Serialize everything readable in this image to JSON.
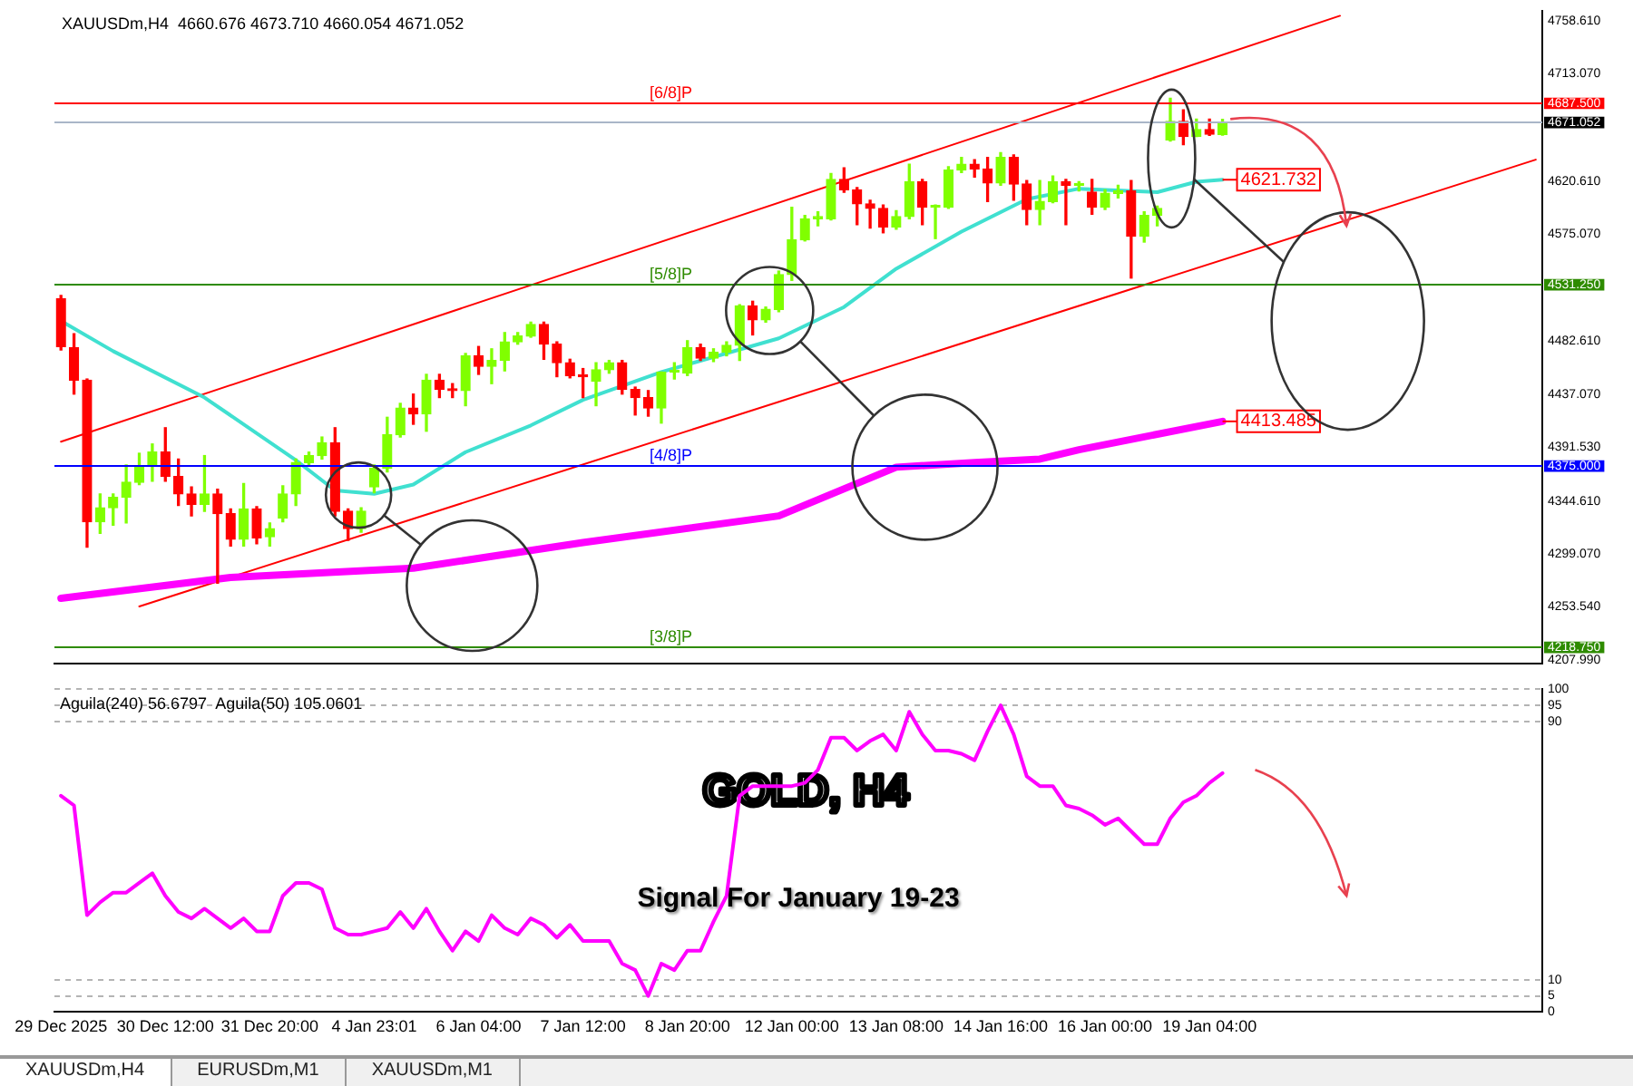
{
  "chart_data": [
    {
      "type": "candlestick",
      "title": "XAUUSDm,H4  4660.676 4673.710 4660.054 4671.052",
      "categories": [
        null,
        null,
        null,
        null,
        null,
        null,
        null,
        null,
        null,
        null,
        null,
        null,
        null,
        null,
        null,
        null,
        null,
        null,
        null,
        null,
        null,
        null,
        null,
        null,
        null,
        null,
        null,
        null,
        null,
        null,
        null,
        null,
        null,
        null,
        null,
        null,
        null,
        null,
        null,
        null,
        null,
        null,
        null,
        null,
        null,
        null,
        null,
        null,
        null,
        null,
        null,
        null,
        null,
        null,
        null,
        null,
        null,
        null,
        null,
        null,
        null,
        null,
        null,
        null,
        null,
        null,
        null,
        null,
        null,
        null,
        null,
        null,
        null,
        null,
        null,
        null,
        null,
        null,
        null,
        null,
        null,
        null,
        null,
        null,
        null,
        null,
        null,
        null,
        null,
        null,
        null,
        null,
        null,
        null,
        null,
        null,
        null,
        null,
        null,
        null,
        null,
        null,
        null,
        null,
        null,
        null,
        null,
        null,
        null,
        null,
        null,
        null,
        null,
        null
      ],
      "ohlc": [
        [
          4519,
          4522,
          4475,
          4478
        ],
        [
          4477,
          4489,
          4437,
          4449
        ],
        [
          4449,
          4450,
          4305,
          4327
        ],
        [
          4327,
          4351,
          4317,
          4339
        ],
        [
          4339,
          4351,
          4324,
          4348
        ],
        [
          4348,
          4376,
          4326,
          4361
        ],
        [
          4361,
          4386,
          4359,
          4375
        ],
        [
          4375,
          4394,
          4362,
          4387
        ],
        [
          4387,
          4408,
          4362,
          4366
        ],
        [
          4366,
          4381,
          4341,
          4351
        ],
        [
          4351,
          4357,
          4332,
          4342
        ],
        [
          4342,
          4384,
          4336,
          4351
        ],
        [
          4351,
          4355,
          4274,
          4334
        ],
        [
          4334,
          4338,
          4306,
          4312
        ],
        [
          4312,
          4360,
          4306,
          4338
        ],
        [
          4338,
          4340,
          4308,
          4313
        ],
        [
          4314,
          4326,
          4306,
          4321
        ],
        [
          4330,
          4358,
          4327,
          4351
        ],
        [
          4351,
          4381,
          4341,
          4378
        ],
        [
          4378,
          4387,
          4376,
          4384
        ],
        [
          4384,
          4400,
          4381,
          4395
        ],
        [
          4395,
          4408,
          4332,
          4336
        ],
        [
          4336,
          4338,
          4311,
          4321
        ],
        [
          4321,
          4339,
          4318,
          4336
        ],
        [
          4357,
          4376,
          4352,
          4373
        ],
        [
          4373,
          4417,
          4370,
          4402
        ],
        [
          4402,
          4429,
          4400,
          4425
        ],
        [
          4425,
          4437,
          4411,
          4420
        ],
        [
          4420,
          4454,
          4405,
          4449
        ],
        [
          4449,
          4454,
          4434,
          4441
        ],
        [
          4441,
          4446,
          4434,
          4440
        ],
        [
          4440,
          4472,
          4427,
          4470
        ],
        [
          4470,
          4478,
          4454,
          4461
        ],
        [
          4461,
          4476,
          4446,
          4466
        ],
        [
          4466,
          4490,
          4457,
          4482
        ],
        [
          4482,
          4490,
          4480,
          4487
        ],
        [
          4487,
          4499,
          4486,
          4497
        ],
        [
          4497,
          4499,
          4467,
          4480
        ],
        [
          4480,
          4482,
          4452,
          4464
        ],
        [
          4464,
          4467,
          4451,
          4453
        ],
        [
          4453,
          4459,
          4434,
          4452
        ],
        [
          4448,
          4464,
          4427,
          4458
        ],
        [
          4458,
          4466,
          4455,
          4464
        ],
        [
          4464,
          4466,
          4437,
          4441
        ],
        [
          4441,
          4443,
          4419,
          4434
        ],
        [
          4434,
          4440,
          4418,
          4425
        ],
        [
          4425,
          4456,
          4412,
          4456
        ],
        [
          4456,
          4464,
          4450,
          4457
        ],
        [
          4455,
          4483,
          4453,
          4477
        ],
        [
          4477,
          4480,
          4466,
          4468
        ],
        [
          4468,
          4476,
          4465,
          4473
        ],
        [
          4473,
          4482,
          4470,
          4479
        ],
        [
          4479,
          4514,
          4466,
          4513
        ],
        [
          4513,
          4517,
          4488,
          4501
        ],
        [
          4501,
          4512,
          4499,
          4510
        ],
        [
          4510,
          4543,
          4508,
          4540
        ],
        [
          4540,
          4598,
          4535,
          4570
        ],
        [
          4570,
          4591,
          4569,
          4588
        ],
        [
          4588,
          4594,
          4582,
          4590
        ],
        [
          4588,
          4627,
          4587,
          4622
        ],
        [
          4622,
          4632,
          4611,
          4613
        ],
        [
          4613,
          4615,
          4583,
          4601
        ],
        [
          4601,
          4604,
          4580,
          4597
        ],
        [
          4597,
          4600,
          4576,
          4581
        ],
        [
          4581,
          4595,
          4579,
          4590
        ],
        [
          4590,
          4635,
          4588,
          4620
        ],
        [
          4620,
          4622,
          4583,
          4598
        ],
        [
          4598,
          4600,
          4571,
          4599
        ],
        [
          4598,
          4633,
          4597,
          4630
        ],
        [
          4630,
          4641,
          4628,
          4635
        ],
        [
          4635,
          4639,
          4624,
          4631
        ],
        [
          4631,
          4641,
          4603,
          4619
        ],
        [
          4619,
          4645,
          4617,
          4641
        ],
        [
          4641,
          4643,
          4604,
          4618
        ],
        [
          4618,
          4621,
          4583,
          4596
        ],
        [
          4596,
          4621,
          4583,
          4603
        ],
        [
          4603,
          4625,
          4602,
          4620
        ],
        [
          4620,
          4622,
          4583,
          4617
        ],
        [
          4617,
          4620,
          4612,
          4618
        ],
        [
          4611,
          4622,
          4592,
          4598
        ],
        [
          4598,
          4613,
          4596,
          4610
        ],
        [
          4610,
          4617,
          4606,
          4612
        ],
        [
          4612,
          4621,
          4537,
          4573
        ],
        [
          4573,
          4594,
          4568,
          4591
        ],
        [
          4591,
          4599,
          4582,
          4597
        ],
        [
          4656,
          4692,
          4655,
          4672
        ],
        [
          4672,
          4682,
          4652,
          4659
        ],
        [
          4659,
          4674,
          4659,
          4665
        ],
        [
          4665,
          4674,
          4660,
          4661
        ],
        [
          4660.676,
          4673.71,
          4660.054,
          4671.052
        ],
        null,
        null,
        null,
        null,
        null,
        null,
        null,
        null,
        null,
        null,
        null,
        null,
        null,
        null,
        null,
        null,
        null,
        null,
        null,
        null,
        null,
        null,
        null,
        null
      ],
      "colors": [
        "#ff0000",
        "#ff0000",
        "#ff0000",
        "#80ff00",
        "#80ff00",
        "#80ff00",
        "#80ff00",
        "#80ff00",
        "#ff0000",
        "#ff0000",
        "#ff0000",
        "#80ff00",
        "#ff0000",
        "#ff0000",
        "#80ff00",
        "#ff0000",
        "#80ff00",
        "#80ff00",
        "#80ff00",
        "#80ff00",
        "#80ff00",
        "#ff0000",
        "#ff0000",
        "#80ff00",
        "#80ff00",
        "#80ff00",
        "#80ff00",
        "#ff0000",
        "#80ff00",
        "#ff0000",
        "#ff0000",
        "#80ff00",
        "#ff0000",
        "#80ff00",
        "#80ff00",
        "#80ff00",
        "#80ff00",
        "#ff0000",
        "#ff0000",
        "#ff0000",
        "#ff0000",
        "#80ff00",
        "#80ff00",
        "#ff0000",
        "#ff0000",
        "#ff0000",
        "#80ff00",
        "#80ff00",
        "#80ff00",
        "#ff0000",
        "#80ff00",
        "#80ff00",
        "#80ff00",
        "#ff0000",
        "#80ff00",
        "#80ff00",
        "#80ff00",
        "#80ff00",
        "#80ff00",
        "#80ff00",
        "#ff0000",
        "#ff0000",
        "#ff0000",
        "#ff0000",
        "#80ff00",
        "#80ff00",
        "#ff0000",
        "#80ff00",
        "#80ff00",
        "#80ff00",
        "#ff0000",
        "#ff0000",
        "#80ff00",
        "#ff0000",
        "#ff0000",
        "#80ff00",
        "#80ff00",
        "#ff0000",
        "#80ff00",
        "#ff0000",
        "#80ff00",
        "#80ff00",
        "#ff0000",
        "#80ff00",
        "#80ff00",
        "#80ff00",
        "#ff0000",
        "#80ff00",
        "#ff0000",
        "#80ff00",
        null,
        null,
        null,
        null,
        null,
        null,
        null,
        null,
        null,
        null,
        null,
        null,
        null,
        null,
        null,
        null,
        null,
        null,
        null,
        null,
        null,
        null,
        null,
        null
      ],
      "series": [
        {
          "type": "line",
          "color": "#40e0d0",
          "values": [
            4500,
            null,
            null,
            null,
            4474,
            null,
            null,
            null,
            null,
            null,
            null,
            4434,
            null,
            null,
            null,
            null,
            null,
            null,
            4380,
            null,
            null,
            4354,
            null,
            null,
            4351,
            null,
            null,
            4359,
            null,
            null,
            null,
            4387,
            null,
            null,
            null,
            null,
            4410,
            null,
            null,
            null,
            4432,
            null,
            null,
            null,
            null,
            null,
            4456,
            null,
            null,
            null,
            null,
            null,
            null,
            null,
            null,
            4485,
            null,
            null,
            null,
            null,
            4512,
            null,
            null,
            null,
            4545,
            null,
            null,
            null,
            null,
            4577,
            null,
            null,
            null,
            null,
            4605,
            null,
            null,
            null,
            4614,
            null,
            null,
            null,
            null,
            null,
            4611,
            null,
            null,
            4620,
            null,
            4621.732,
            null,
            null,
            null,
            null,
            null,
            null,
            null,
            null,
            null,
            null,
            null,
            null,
            null,
            null,
            null,
            null,
            null,
            null,
            null,
            null,
            null,
            null,
            null,
            null
          ],
          "value_labels": [
            null,
            null,
            null,
            null,
            null,
            null,
            null,
            null,
            null,
            null,
            null,
            null,
            null,
            null,
            null,
            null,
            null,
            null,
            null,
            null,
            null,
            null,
            null,
            null,
            null,
            null,
            null,
            null,
            null,
            null,
            null,
            null,
            null,
            null,
            null,
            null,
            null,
            null,
            null,
            null,
            null,
            null,
            null,
            null,
            null,
            null,
            null,
            null,
            null,
            null,
            null,
            null,
            null,
            null,
            null,
            null,
            null,
            null,
            null,
            null,
            null,
            null,
            null,
            null,
            null,
            null,
            null,
            null,
            null,
            null,
            null,
            null,
            null,
            null,
            null,
            null,
            null,
            null,
            null,
            null,
            null,
            null,
            null,
            null,
            null,
            null,
            null,
            null,
            null,
            "4621.732",
            null,
            null,
            null,
            null,
            null,
            null,
            null,
            null,
            null,
            null,
            null,
            null,
            null,
            null,
            null,
            null,
            null,
            null,
            null,
            null,
            null,
            null,
            null,
            null
          ]
        },
        {
          "type": "line",
          "color": "#ff00ff",
          "values": [
            4261,
            null,
            null,
            null,
            null,
            null,
            null,
            null,
            null,
            null,
            null,
            null,
            null,
            4279,
            null,
            null,
            null,
            null,
            null,
            null,
            null,
            null,
            null,
            null,
            null,
            null,
            null,
            4287,
            null,
            null,
            null,
            null,
            null,
            null,
            null,
            null,
            null,
            null,
            null,
            null,
            4309,
            null,
            null,
            null,
            null,
            null,
            null,
            null,
            null,
            null,
            null,
            null,
            null,
            null,
            null,
            4332,
            null,
            null,
            null,
            null,
            null,
            null,
            null,
            null,
            4374,
            null,
            null,
            null,
            null,
            null,
            4378,
            null,
            null,
            null,
            null,
            4381,
            null,
            null,
            4389,
            null,
            null,
            null,
            null,
            null,
            null,
            null,
            null,
            null,
            null,
            4413.485,
            null,
            null,
            null,
            null,
            null,
            null,
            null,
            null,
            null,
            null,
            null,
            null,
            null,
            null,
            null,
            null,
            null,
            null,
            null,
            null,
            null,
            null,
            null,
            null
          ],
          "value_labels": [
            null,
            null,
            null,
            null,
            null,
            null,
            null,
            null,
            null,
            null,
            null,
            null,
            null,
            null,
            null,
            null,
            null,
            null,
            null,
            null,
            null,
            null,
            null,
            null,
            null,
            null,
            null,
            null,
            null,
            null,
            null,
            null,
            null,
            null,
            null,
            null,
            null,
            null,
            null,
            null,
            null,
            null,
            null,
            null,
            null,
            null,
            null,
            null,
            null,
            null,
            null,
            null,
            null,
            null,
            null,
            null,
            null,
            null,
            null,
            null,
            null,
            null,
            null,
            null,
            null,
            null,
            null,
            null,
            null,
            null,
            null,
            null,
            null,
            null,
            null,
            null,
            null,
            null,
            null,
            null,
            null,
            null,
            null,
            null,
            null,
            null,
            null,
            null,
            null,
            "4413.485",
            null,
            null,
            null,
            null,
            null,
            null,
            null,
            null,
            null,
            null,
            null,
            null,
            null,
            null,
            null,
            null,
            null,
            null,
            null,
            null,
            null,
            null,
            null,
            null
          ]
        },
        {
          "type": "line",
          "color": "#ff0000",
          "values": [
            4396,
            null,
            null,
            null,
            null,
            null,
            null,
            null,
            null,
            null,
            null,
            null,
            null,
            null,
            null,
            null,
            null,
            null,
            null,
            null,
            null,
            null,
            null,
            null,
            null,
            null,
            null,
            null,
            null,
            null,
            null,
            null,
            null,
            null,
            null,
            null,
            null,
            null,
            null,
            null,
            null,
            null,
            null,
            null,
            null,
            null,
            null,
            null,
            null,
            null,
            null,
            null,
            null,
            null,
            null,
            null,
            null,
            null,
            null,
            null,
            null,
            null,
            null,
            null,
            null,
            null,
            null,
            null,
            null,
            null,
            null,
            null,
            null,
            null,
            null,
            null,
            null,
            null,
            null,
            null,
            null,
            null,
            null,
            null,
            null,
            null,
            null,
            null,
            null,
            null,
            null,
            null,
            null,
            null,
            null,
            null,
            null,
            null,
            4763,
            null,
            null,
            null,
            null,
            null,
            null,
            null,
            null,
            null,
            null,
            null,
            null,
            null,
            null,
            null
          ]
        },
        {
          "type": "line",
          "color": "#ff0000",
          "values": [
            null,
            null,
            null,
            null,
            null,
            null,
            4254,
            null,
            null,
            null,
            null,
            null,
            null,
            null,
            null,
            null,
            null,
            null,
            null,
            null,
            null,
            null,
            null,
            null,
            null,
            null,
            null,
            null,
            null,
            null,
            null,
            null,
            null,
            null,
            null,
            null,
            null,
            null,
            null,
            null,
            null,
            null,
            null,
            null,
            null,
            null,
            null,
            null,
            null,
            null,
            null,
            null,
            null,
            null,
            null,
            null,
            null,
            null,
            null,
            null,
            null,
            null,
            null,
            null,
            null,
            null,
            null,
            null,
            null,
            null,
            null,
            null,
            null,
            null,
            null,
            null,
            null,
            null,
            null,
            null,
            null,
            null,
            null,
            null,
            null,
            null,
            null,
            null,
            null,
            null,
            null,
            null,
            null,
            null,
            null,
            null,
            null,
            null,
            null,
            null,
            null,
            null,
            null,
            null,
            null,
            null,
            null,
            null,
            null,
            null,
            null,
            null,
            null,
            4639
          ]
        }
      ],
      "ylim": [
        4205,
        4767
      ],
      "yticks": [
        {
          "value": 4207.99,
          "label": "4207.990"
        },
        {
          "value": 4218.75,
          "label": "4218.750"
        },
        {
          "value": 4253.54,
          "label": "4253.540"
        },
        {
          "value": 4299.07,
          "label": "4299.070"
        },
        {
          "value": 4344.61,
          "label": "4344.610"
        },
        {
          "value": 4375,
          "label": "4375.000"
        },
        {
          "value": 4391.53,
          "label": "4391.530"
        },
        {
          "value": 4437.07,
          "label": "4437.070"
        },
        {
          "value": 4482.61,
          "label": "4482.610"
        },
        {
          "value": 4531.25,
          "label": "4531.250"
        },
        {
          "value": 4575.07,
          "label": "4575.070"
        },
        {
          "value": 4620.61,
          "label": "4620.610"
        },
        {
          "value": 4671.052,
          "label": "4671.052"
        },
        {
          "value": 4687.5,
          "label": "4687.500"
        },
        {
          "value": 4713.07,
          "label": "4713.070"
        },
        {
          "value": 4758.61,
          "label": "4758.610"
        }
      ],
      "ref_lines": [
        {
          "axis": "y",
          "value": 4687.5,
          "label": "[6/8]P",
          "color": "#ff0000"
        },
        {
          "axis": "y",
          "value": 4671.052,
          "color": "#a9b6c8"
        },
        {
          "axis": "y",
          "value": 4531.25,
          "label": "[5/8]P",
          "color": "#2e8b00"
        },
        {
          "axis": "y",
          "value": 4375,
          "label": "[4/8]P",
          "color": "#0000ff"
        },
        {
          "axis": "y",
          "value": 4218.75,
          "label": "[3/8]P",
          "color": "#2e8b00"
        }
      ],
      "tick_labels": "y"
    },
    {
      "type": "line",
      "title": "GOLD, H4",
      "subtitle": "Signal For January 19-23",
      "categories": [
        "29 Dec 2025",
        null,
        null,
        null,
        null,
        null,
        null,
        null,
        "30 Dec 12:00",
        null,
        null,
        null,
        null,
        null,
        null,
        null,
        "31 Dec 20:00",
        null,
        null,
        null,
        null,
        null,
        null,
        null,
        "4 Jan 23:01",
        null,
        null,
        null,
        null,
        null,
        null,
        null,
        "6 Jan 04:00",
        null,
        null,
        null,
        null,
        null,
        null,
        null,
        "7 Jan 12:00",
        null,
        null,
        null,
        null,
        null,
        null,
        null,
        "8 Jan 20:00",
        null,
        null,
        null,
        null,
        null,
        null,
        null,
        "12 Jan 00:00",
        null,
        null,
        null,
        null,
        null,
        null,
        null,
        "13 Jan 08:00",
        null,
        null,
        null,
        null,
        null,
        null,
        null,
        "14 Jan 16:00",
        null,
        null,
        null,
        null,
        null,
        null,
        null,
        "16 Jan 00:00",
        null,
        null,
        null,
        null,
        null,
        null,
        null,
        "19 Jan 04:00",
        null,
        null,
        null,
        null,
        null,
        null,
        null,
        null,
        null,
        null,
        null,
        null,
        null,
        null,
        null,
        null,
        null,
        null,
        null,
        null,
        null,
        null,
        null,
        null,
        null
      ],
      "series": [
        {
          "color": "#ff00ff",
          "values": [
            67,
            64,
            30,
            34,
            37,
            37,
            40,
            43,
            36,
            31,
            29,
            32,
            29,
            26,
            29,
            25,
            25,
            36,
            40,
            40,
            38,
            26,
            24,
            24,
            25,
            26,
            31,
            26,
            32,
            25,
            19,
            25,
            22,
            30,
            26,
            24,
            29,
            27,
            23,
            27,
            22,
            22,
            22,
            15,
            13,
            5,
            15,
            13,
            19,
            19,
            28,
            36,
            67,
            70,
            70,
            70,
            70,
            71,
            75,
            85,
            85,
            81,
            84,
            86,
            81,
            93,
            86,
            81,
            81,
            80,
            78,
            87,
            95,
            86,
            73,
            70,
            70,
            64,
            63,
            61,
            58,
            60,
            56,
            52,
            52,
            60,
            65,
            67,
            71,
            74,
            null,
            null,
            null,
            null,
            null,
            null,
            null,
            null,
            null,
            null,
            null,
            null,
            null,
            null,
            null,
            null,
            null,
            null,
            null,
            null,
            null,
            null,
            null,
            null
          ]
        }
      ],
      "ylim": [
        0,
        100
      ],
      "yticks": [
        0,
        5,
        10,
        90,
        95,
        100
      ],
      "grid": "y",
      "annotations": [
        "Aguila(240) 56.6797  Aguila(50) 105.0601",
        "XAUUSDm,H4",
        "EURUSDm,M1",
        "XAUUSDm,M1"
      ]
    }
  ]
}
